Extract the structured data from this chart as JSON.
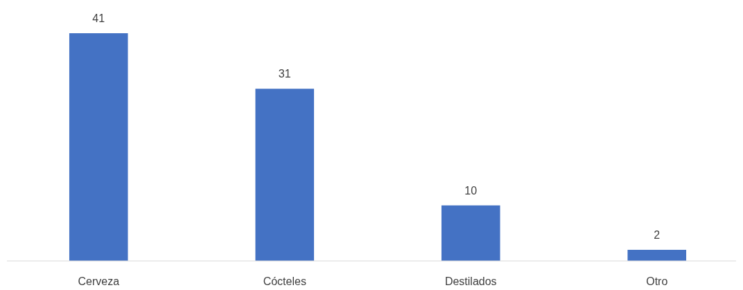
{
  "chart_data": {
    "type": "bar",
    "categories": [
      "Cerveza",
      "Cócteles",
      "Destilados",
      "Otro"
    ],
    "values": [
      41,
      31,
      10,
      2
    ],
    "color": "#4472c4",
    "data_labels": true
  }
}
